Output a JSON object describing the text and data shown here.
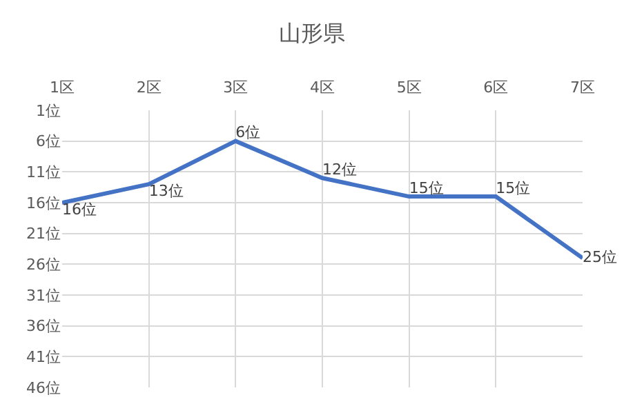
{
  "chart_data": {
    "type": "line",
    "title": "山形県",
    "categories": [
      "1区",
      "2区",
      "3区",
      "4区",
      "5区",
      "6区",
      "7区"
    ],
    "series": [
      {
        "color": "#4472c4",
        "values": [
          16,
          13,
          6,
          12,
          15,
          15,
          25
        ],
        "value_labels": [
          "16位",
          "13位",
          "6位",
          "12位",
          "15位",
          "15位",
          "25位"
        ]
      }
    ],
    "ylim": [
      46,
      1
    ],
    "yticks": [
      {
        "value": 1,
        "label": "1位"
      },
      {
        "value": 6,
        "label": "6位"
      },
      {
        "value": 11,
        "label": "11位"
      },
      {
        "value": 16,
        "label": "16位"
      },
      {
        "value": 21,
        "label": "21位"
      },
      {
        "value": 26,
        "label": "26位"
      },
      {
        "value": 31,
        "label": "31位"
      },
      {
        "value": 36,
        "label": "36位"
      },
      {
        "value": 41,
        "label": "41位"
      },
      {
        "value": 46,
        "label": "46位"
      }
    ],
    "grid": true,
    "marker": "none",
    "line_style": "solid"
  }
}
